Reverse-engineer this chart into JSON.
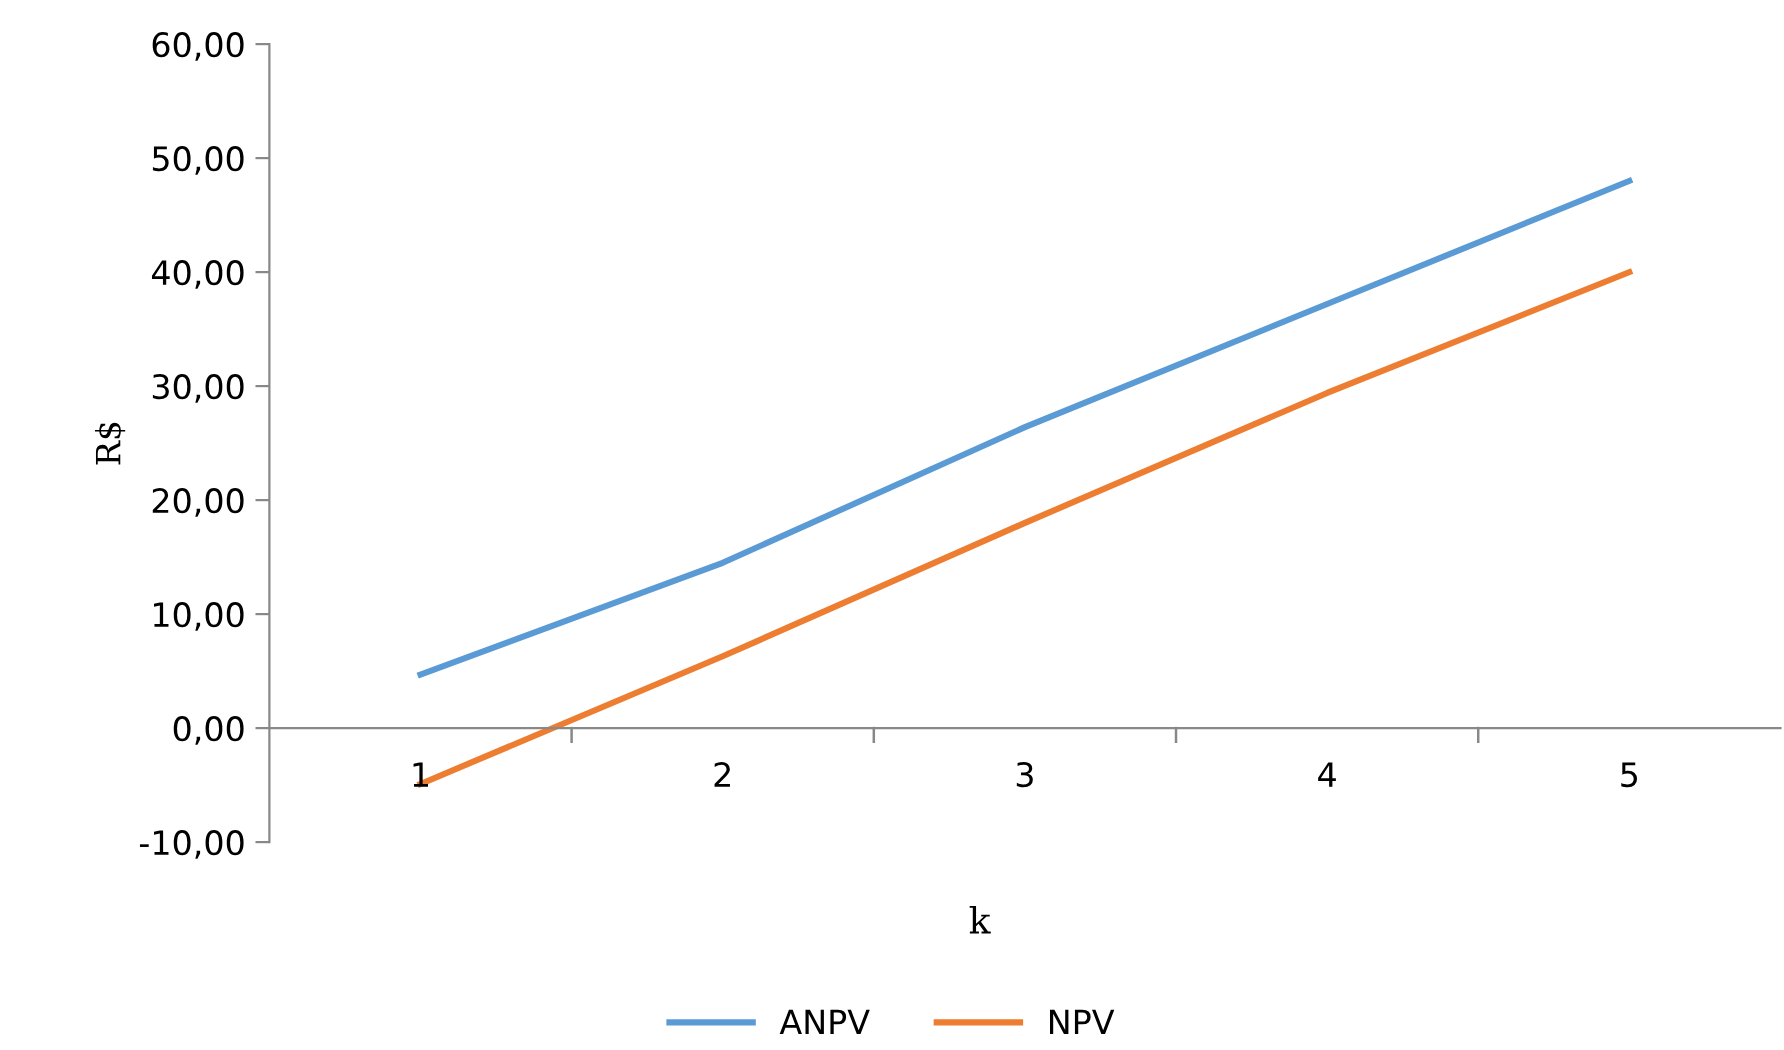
{
  "chart_data": {
    "type": "line",
    "categories": [
      "1",
      "2",
      "3",
      "4",
      "5"
    ],
    "xlabel": "k",
    "ylabel": "R$",
    "series": [
      {
        "name": "ANPV",
        "color": "#5b9bd5",
        "values": [
          4.7,
          14.5,
          26.4,
          37.2,
          48.0
        ]
      },
      {
        "name": "NPV",
        "color": "#ed7d31",
        "values": [
          -4.9,
          6.3,
          18.0,
          29.4,
          40.0
        ]
      }
    ],
    "ylim": [
      -10,
      60
    ],
    "yticks": [
      {
        "value": -10,
        "label": "-10,00"
      },
      {
        "value": 0,
        "label": "0,00"
      },
      {
        "value": 10,
        "label": "10,00"
      },
      {
        "value": 20,
        "label": "20,00"
      },
      {
        "value": 30,
        "label": "30,00"
      },
      {
        "value": 40,
        "label": "40,00"
      },
      {
        "value": 50,
        "label": "50,00"
      },
      {
        "value": 60,
        "label": "60,00"
      }
    ],
    "grid": false,
    "legend": "bottom",
    "marker": "none",
    "line_style": "solid"
  }
}
